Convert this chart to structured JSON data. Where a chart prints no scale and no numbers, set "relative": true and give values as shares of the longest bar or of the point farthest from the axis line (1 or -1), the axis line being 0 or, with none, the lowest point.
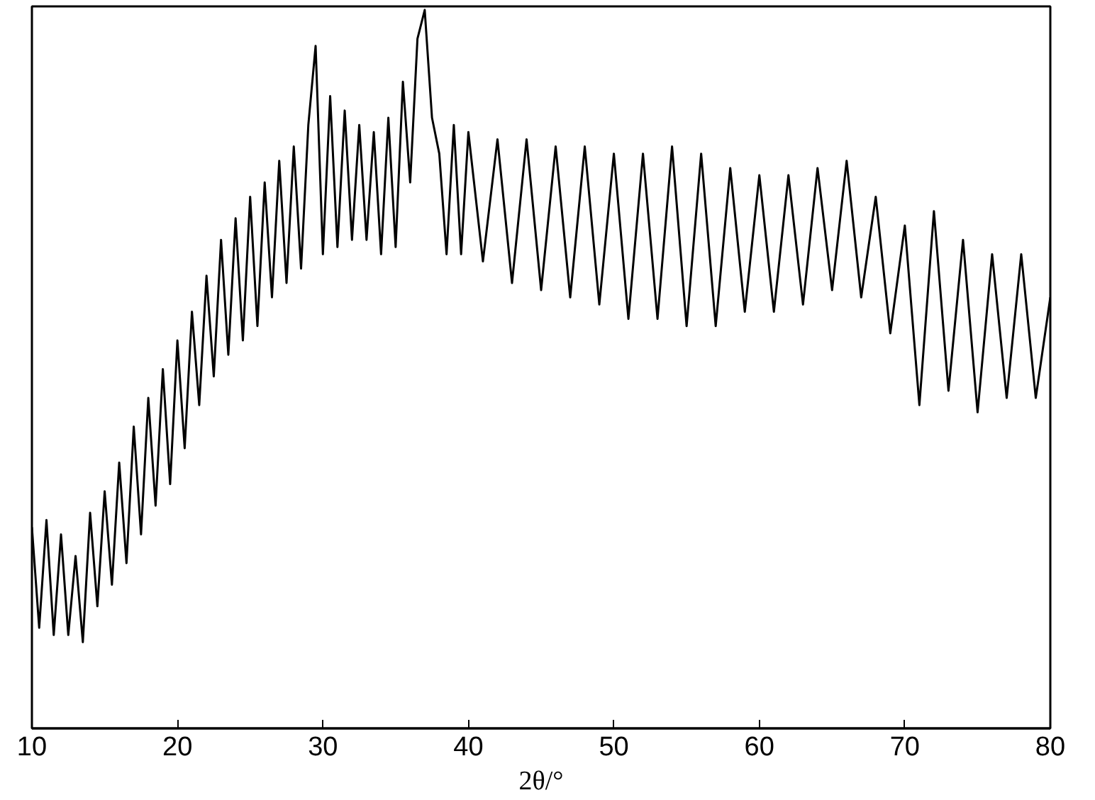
{
  "chart_data": {
    "type": "line",
    "relative": true,
    "xlabel": "2θ/°",
    "xlim": [
      10,
      80
    ],
    "xticks": [
      10,
      20,
      30,
      40,
      50,
      60,
      70,
      80
    ],
    "grid": false,
    "tick_labels": "x",
    "series": [
      {
        "color": "#000000",
        "x": [
          10,
          10.5,
          11,
          11.5,
          12,
          12.5,
          13,
          13.5,
          14,
          14.5,
          15,
          15.5,
          16,
          16.5,
          17,
          17.5,
          18,
          18.5,
          19,
          19.5,
          20,
          20.5,
          21,
          21.5,
          22,
          22.5,
          23,
          23.5,
          24,
          24.5,
          25,
          25.5,
          26,
          26.5,
          27,
          27.5,
          28,
          28.5,
          29,
          29.5,
          30,
          30.5,
          31,
          31.5,
          32,
          32.5,
          33,
          33.5,
          34,
          34.5,
          35,
          35.5,
          36,
          36.5,
          37,
          37.5,
          38,
          38.5,
          39,
          39.5,
          40,
          41,
          42,
          43,
          44,
          45,
          46,
          47,
          48,
          49,
          50,
          51,
          52,
          53,
          54,
          55,
          56,
          57,
          58,
          59,
          60,
          61,
          62,
          63,
          64,
          65,
          66,
          67,
          68,
          69,
          70,
          71,
          72,
          73,
          74,
          75,
          76,
          77,
          78,
          79,
          80
        ],
        "values": [
          0.28,
          0.14,
          0.29,
          0.13,
          0.27,
          0.13,
          0.24,
          0.12,
          0.3,
          0.17,
          0.33,
          0.2,
          0.37,
          0.23,
          0.42,
          0.27,
          0.46,
          0.31,
          0.5,
          0.34,
          0.54,
          0.39,
          0.58,
          0.45,
          0.63,
          0.49,
          0.68,
          0.52,
          0.71,
          0.54,
          0.74,
          0.56,
          0.76,
          0.6,
          0.79,
          0.62,
          0.81,
          0.64,
          0.84,
          0.95,
          0.66,
          0.88,
          0.67,
          0.86,
          0.68,
          0.84,
          0.68,
          0.83,
          0.66,
          0.85,
          0.67,
          0.9,
          0.76,
          0.96,
          1.0,
          0.85,
          0.8,
          0.66,
          0.84,
          0.66,
          0.83,
          0.65,
          0.82,
          0.62,
          0.82,
          0.61,
          0.81,
          0.6,
          0.81,
          0.59,
          0.8,
          0.57,
          0.8,
          0.57,
          0.81,
          0.56,
          0.8,
          0.56,
          0.78,
          0.58,
          0.77,
          0.58,
          0.77,
          0.59,
          0.78,
          0.61,
          0.79,
          0.6,
          0.74,
          0.55,
          0.7,
          0.45,
          0.72,
          0.47,
          0.68,
          0.44,
          0.66,
          0.46,
          0.66,
          0.46,
          0.6
        ]
      }
    ]
  }
}
